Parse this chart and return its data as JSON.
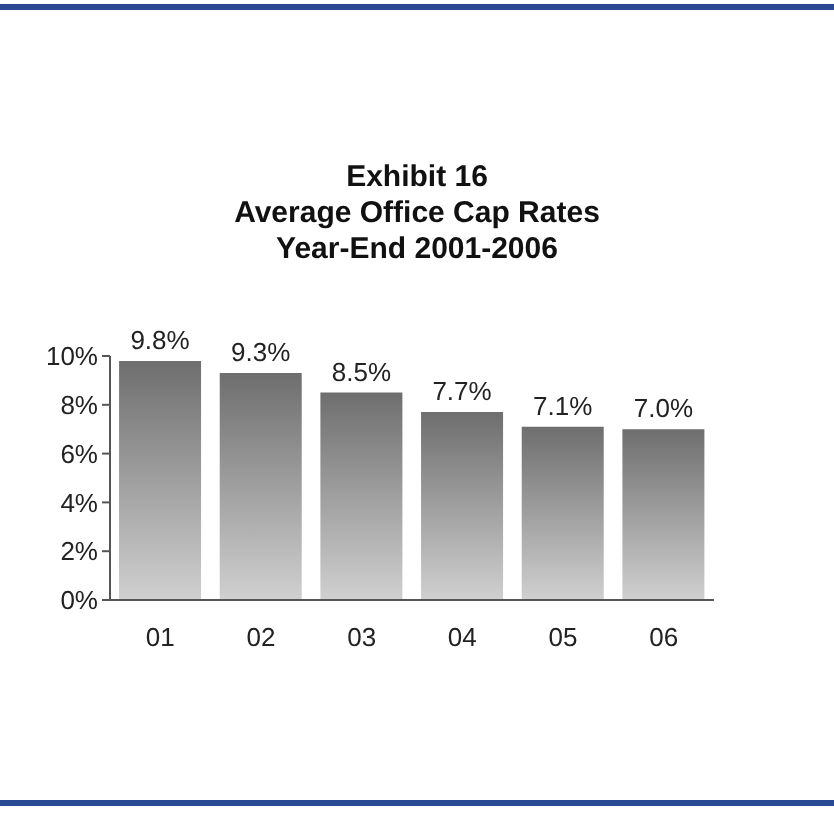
{
  "chart_data": {
    "type": "bar",
    "title": "Exhibit 16\nAverage Office Cap Rates\nYear-End 2001-2006",
    "categories": [
      "01",
      "02",
      "03",
      "04",
      "05",
      "06"
    ],
    "values": [
      9.8,
      9.3,
      8.5,
      7.7,
      7.1,
      7.0
    ],
    "value_labels": [
      "9.8%",
      "9.3%",
      "8.5%",
      "7.7%",
      "7.1%",
      "7.0%"
    ],
    "color": "#6e6e6e",
    "ylim": [
      0,
      10
    ],
    "yticks": [
      {
        "value": 0,
        "label": "0%"
      },
      {
        "value": 2,
        "label": "2%"
      },
      {
        "value": 4,
        "label": "4%"
      },
      {
        "value": 6,
        "label": "6%"
      },
      {
        "value": 8,
        "label": "8%"
      },
      {
        "value": 10,
        "label": "10%"
      }
    ],
    "grid": false,
    "legend": false
  }
}
